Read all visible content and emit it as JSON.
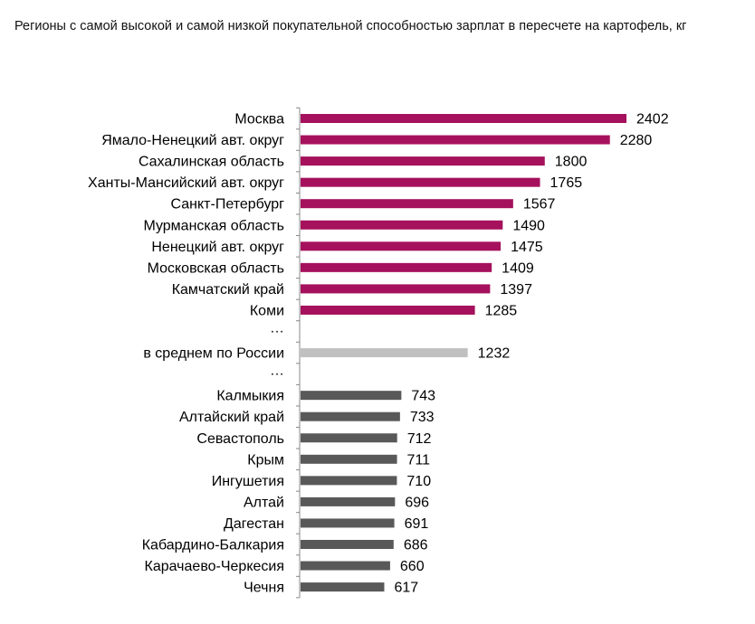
{
  "chart_data": {
    "type": "bar",
    "orientation": "horizontal",
    "title": "Регионы с самой высокой и самой низкой покупательной способностью зарплат в пересчете на картофель, кг",
    "xlabel": "",
    "ylabel": "",
    "xlim": [
      0,
      2402
    ],
    "grid": false,
    "legend": "none",
    "value_labels": true,
    "colors": {
      "top": "#a5115c",
      "average": "#c0c0c0",
      "bottom": "#595959",
      "axis": "#888888"
    },
    "rows": [
      {
        "category": "Москва",
        "value": 2402,
        "group": "top"
      },
      {
        "category": "Ямало-Ненецкий авт. округ",
        "value": 2280,
        "group": "top"
      },
      {
        "category": "Сахалинская область",
        "value": 1800,
        "group": "top"
      },
      {
        "category": "Ханты-Мансийский авт. округ",
        "value": 1765,
        "group": "top"
      },
      {
        "category": "Санкт-Петербург",
        "value": 1567,
        "group": "top"
      },
      {
        "category": "Мурманская область",
        "value": 1490,
        "group": "top"
      },
      {
        "category": "Ненецкий авт. округ",
        "value": 1475,
        "group": "top"
      },
      {
        "category": "Московская область",
        "value": 1409,
        "group": "top"
      },
      {
        "category": "Камчатский край",
        "value": 1397,
        "group": "top"
      },
      {
        "category": "Коми",
        "value": 1285,
        "group": "top"
      },
      {
        "category": "…",
        "value": null,
        "group": "gap"
      },
      {
        "category": "в среднем по России",
        "value": 1232,
        "group": "average"
      },
      {
        "category": "…",
        "value": null,
        "group": "gap"
      },
      {
        "category": "Калмыкия",
        "value": 743,
        "group": "bottom"
      },
      {
        "category": "Алтайский край",
        "value": 733,
        "group": "bottom"
      },
      {
        "category": "Севастополь",
        "value": 712,
        "group": "bottom"
      },
      {
        "category": "Крым",
        "value": 711,
        "group": "bottom"
      },
      {
        "category": "Ингушетия",
        "value": 710,
        "group": "bottom"
      },
      {
        "category": "Алтай",
        "value": 696,
        "group": "bottom"
      },
      {
        "category": "Дагестан",
        "value": 691,
        "group": "bottom"
      },
      {
        "category": "Кабардино-Балкария",
        "value": 686,
        "group": "bottom"
      },
      {
        "category": "Карачаево-Черкесия",
        "value": 660,
        "group": "bottom"
      },
      {
        "category": "Чечня",
        "value": 617,
        "group": "bottom"
      }
    ]
  }
}
